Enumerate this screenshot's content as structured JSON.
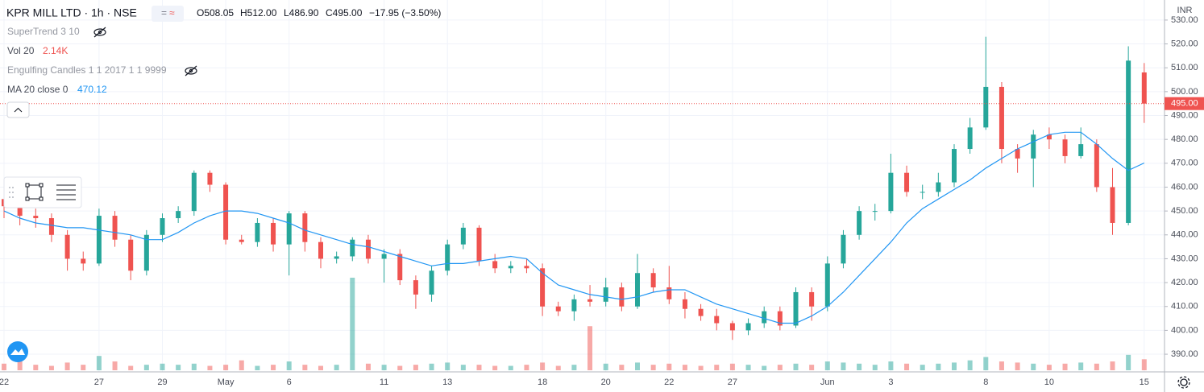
{
  "header": {
    "title": "KPR MILL LTD · 1h · NSE",
    "ohlc": [
      "O508.05",
      "H512.00",
      "L486.90",
      "C495.00",
      "−17.95 (−3.50%)"
    ],
    "currency": "INR"
  },
  "indicators": [
    {
      "name": "SuperTrend 3 10"
    },
    {
      "name": "Vol 20",
      "value": "2.14K"
    },
    {
      "name": "Engulfing Candles 1 1 2017 1 1 9999"
    },
    {
      "name": "MA 20 close 0",
      "value": "470.12"
    }
  ],
  "chart_data": {
    "type": "candlestick",
    "categories": [
      "22",
      null,
      null,
      null,
      null,
      null,
      "27",
      null,
      null,
      null,
      "29",
      null,
      null,
      null,
      "May",
      null,
      null,
      null,
      "6",
      null,
      null,
      null,
      null,
      null,
      "11",
      null,
      null,
      null,
      "13",
      null,
      null,
      null,
      null,
      null,
      "18",
      null,
      null,
      null,
      "20",
      null,
      null,
      null,
      "22",
      null,
      null,
      null,
      "27",
      null,
      null,
      null,
      null,
      null,
      "Jun",
      null,
      null,
      null,
      "3",
      null,
      null,
      null,
      null,
      null,
      "8",
      null,
      null,
      null,
      "10",
      null,
      null,
      null,
      null,
      null,
      "15"
    ],
    "open": [
      455,
      452,
      448,
      447,
      440,
      430,
      428,
      448,
      438,
      425,
      440,
      447,
      450,
      466,
      461,
      438,
      437,
      445,
      436,
      449,
      437,
      430,
      431,
      438,
      430,
      432,
      421,
      415,
      425,
      436,
      443,
      429,
      426,
      427,
      426,
      410,
      408,
      413,
      412,
      418,
      410,
      424,
      418,
      413,
      409,
      406,
      403,
      400,
      403,
      408,
      402,
      416,
      410,
      428,
      440,
      450,
      450,
      466,
      458,
      458,
      462,
      476,
      485,
      502,
      476,
      472,
      482,
      480,
      473,
      478,
      460,
      445,
      508.05
    ],
    "high": [
      458,
      455,
      451,
      449,
      442,
      433,
      451,
      450,
      440,
      442,
      449,
      452,
      467,
      467,
      462,
      440,
      447,
      447,
      450,
      450,
      439,
      433,
      439,
      440,
      434,
      434,
      423,
      427,
      438,
      445,
      444,
      432,
      429,
      430,
      428,
      412,
      415,
      419,
      422,
      420,
      432,
      426,
      427,
      416,
      411,
      409,
      404,
      405,
      410,
      410,
      418,
      418,
      431,
      442,
      452,
      453,
      474,
      469,
      461,
      466,
      478,
      489,
      523,
      504,
      478,
      484,
      485,
      482,
      485,
      480,
      468,
      519,
      512
    ],
    "low": [
      447,
      444,
      443,
      437,
      425,
      425,
      427,
      435,
      421,
      423,
      437,
      445,
      448,
      458,
      436,
      436,
      435,
      433,
      423,
      433,
      426,
      428,
      429,
      428,
      420,
      419,
      409,
      412,
      423,
      434,
      427,
      424,
      424,
      424,
      406,
      406,
      404,
      410,
      410,
      408,
      409,
      416,
      411,
      405,
      404,
      400,
      396,
      398,
      401,
      400,
      401,
      404,
      408,
      426,
      438,
      446,
      449,
      456,
      455,
      456,
      460,
      474,
      484,
      470,
      466,
      460,
      476,
      470,
      472,
      458,
      440,
      444,
      486.9
    ],
    "close": [
      452,
      448,
      447,
      440,
      430,
      428,
      448,
      438,
      425,
      440,
      447,
      450,
      466,
      461,
      438,
      437,
      445,
      436,
      449,
      437,
      430,
      431,
      438,
      430,
      432,
      421,
      415,
      425,
      436,
      443,
      429,
      426,
      427,
      426,
      410,
      408,
      413,
      412,
      418,
      410,
      424,
      418,
      413,
      409,
      406,
      403,
      400,
      403,
      408,
      402,
      416,
      410,
      428,
      440,
      450,
      450,
      466,
      458,
      458,
      462,
      476,
      485,
      502,
      476,
      472,
      482,
      480,
      473,
      478,
      460,
      445,
      513,
      495
    ],
    "volume": [
      3000,
      5000,
      2500,
      2000,
      3500,
      2500,
      6500,
      4000,
      2000,
      2500,
      3000,
      2500,
      3000,
      2000,
      2500,
      4500,
      2000,
      2500,
      4000,
      2500,
      2000,
      2500,
      42000,
      3000,
      2500,
      2000,
      2500,
      3000,
      3500,
      2500,
      2500,
      2000,
      2000,
      2500,
      3500,
      2000,
      2500,
      20000,
      3000,
      2500,
      3500,
      2500,
      3000,
      2500,
      2000,
      2500,
      3000,
      2500,
      2000,
      2500,
      3000,
      2500,
      4000,
      3500,
      3000,
      2500,
      4000,
      3000,
      2500,
      3000,
      3500,
      4500,
      6000,
      4000,
      3500,
      3000,
      2500,
      3000,
      3500,
      3000,
      4000,
      7000,
      5000
    ],
    "ma": {
      "color": "#2196f3",
      "values": [
        450,
        447,
        445,
        444,
        443,
        443,
        442,
        441,
        440,
        438,
        438,
        441,
        445,
        448,
        450,
        450,
        449,
        447,
        445,
        442,
        440,
        438,
        436,
        435,
        433,
        431,
        429,
        427,
        428,
        428,
        429,
        430,
        431,
        430,
        424,
        419,
        417,
        415,
        414,
        413,
        414,
        416,
        417,
        417,
        414,
        411,
        409,
        407,
        405,
        403,
        403,
        406,
        410,
        416,
        423,
        430,
        437,
        445,
        451,
        455,
        459,
        463,
        468,
        472,
        476,
        479,
        482,
        483,
        483,
        478,
        472,
        467,
        470.12
      ]
    },
    "up_color": "#26a69a",
    "down_color": "#ef5350",
    "last_price": {
      "value": 495,
      "label": "495.00"
    },
    "ylim": [
      382.6,
      538.4
    ],
    "yticks": [
      {
        "value": 390,
        "label": "390.00"
      },
      {
        "value": 400,
        "label": "400.00"
      },
      {
        "value": 410,
        "label": "410.00"
      },
      {
        "value": 420,
        "label": "420.00"
      },
      {
        "value": 430,
        "label": "430.00"
      },
      {
        "value": 440,
        "label": "440.00"
      },
      {
        "value": 450,
        "label": "450.00"
      },
      {
        "value": 460,
        "label": "460.00"
      },
      {
        "value": 470,
        "label": "470.00"
      },
      {
        "value": 480,
        "label": "480.00"
      },
      {
        "value": 490,
        "label": "490.00"
      },
      {
        "value": 500,
        "label": "500.00"
      },
      {
        "value": 510,
        "label": "510.00"
      },
      {
        "value": 520,
        "label": "520.00"
      },
      {
        "value": 530,
        "label": "530.00"
      }
    ],
    "grid": true
  }
}
